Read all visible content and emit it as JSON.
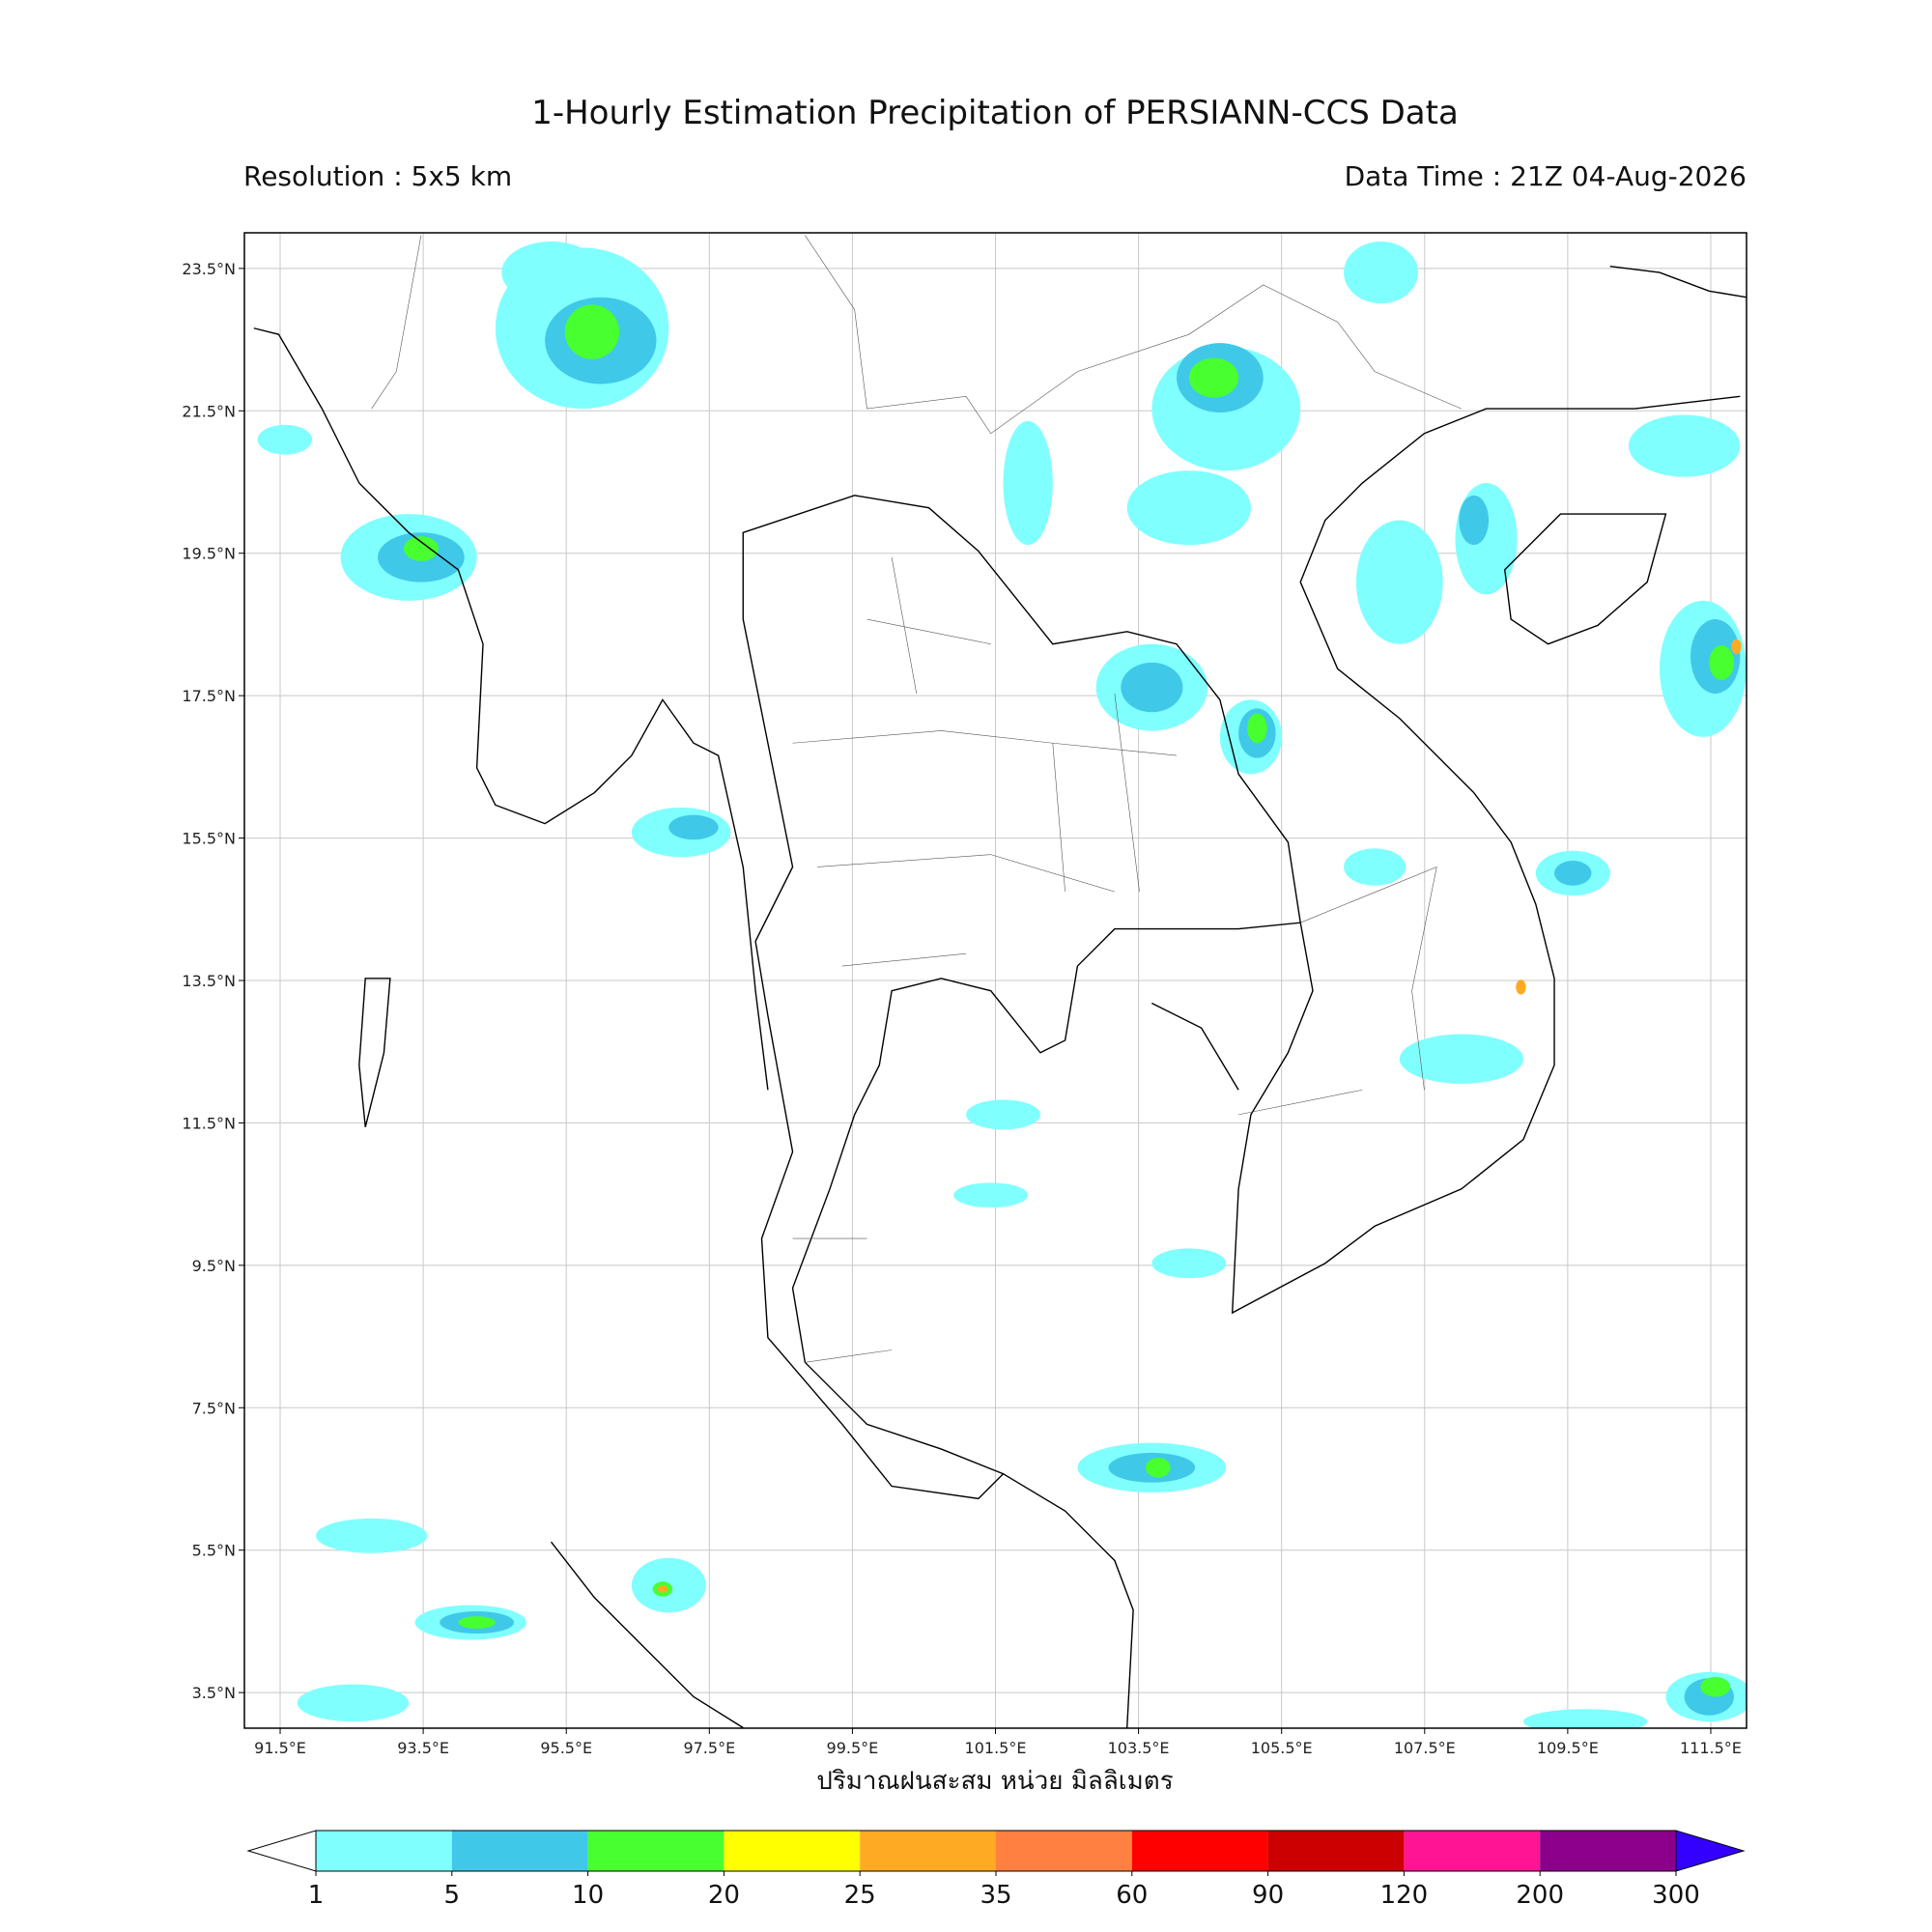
{
  "header": {
    "title": "1-Hourly Estimation Precipitation of PERSIANN-CCS Data",
    "resolution": "Resolution : 5x5 km",
    "data_time": "Data Time : 21Z 04-Aug-2026"
  },
  "map": {
    "xlim": [
      91,
      112
    ],
    "ylim": [
      3,
      24
    ],
    "xticks": [
      {
        "value": 91.5,
        "label": "91.5°E"
      },
      {
        "value": 93.5,
        "label": "93.5°E"
      },
      {
        "value": 95.5,
        "label": "95.5°E"
      },
      {
        "value": 97.5,
        "label": "97.5°E"
      },
      {
        "value": 99.5,
        "label": "99.5°E"
      },
      {
        "value": 101.5,
        "label": "101.5°E"
      },
      {
        "value": 103.5,
        "label": "103.5°E"
      },
      {
        "value": 105.5,
        "label": "105.5°E"
      },
      {
        "value": 107.5,
        "label": "107.5°E"
      },
      {
        "value": 109.5,
        "label": "109.5°E"
      },
      {
        "value": 111.5,
        "label": "111.5°E"
      }
    ],
    "yticks": [
      {
        "value": 23.5,
        "label": "23.5°N"
      },
      {
        "value": 21.5,
        "label": "21.5°N"
      },
      {
        "value": 19.5,
        "label": "19.5°N"
      },
      {
        "value": 17.5,
        "label": "17.5°N"
      },
      {
        "value": 15.5,
        "label": "15.5°N"
      },
      {
        "value": 13.5,
        "label": "13.5°N"
      },
      {
        "value": 11.5,
        "label": "11.5°N"
      },
      {
        "value": 9.5,
        "label": "9.5°N"
      },
      {
        "value": 7.5,
        "label": "7.5°N"
      },
      {
        "value": 5.5,
        "label": "5.5°N"
      },
      {
        "value": 3.5,
        "label": "3.5°N"
      }
    ],
    "grid": true,
    "axis_label": "ปริมาณฝนสะสม หน่วย มิลลิเมตร"
  },
  "colorbar": {
    "bounds": [
      1,
      5,
      10,
      20,
      25,
      35,
      60,
      90,
      120,
      200,
      300
    ],
    "colors": [
      "#80ffff",
      "#40c8e8",
      "#48ff30",
      "#ffff00",
      "#ffaa22",
      "#ff8040",
      "#ff0000",
      "#cc0000",
      "#ff1493",
      "#8b008b"
    ],
    "under_color": "#ffffff",
    "over_color": "#3300ff"
  }
}
